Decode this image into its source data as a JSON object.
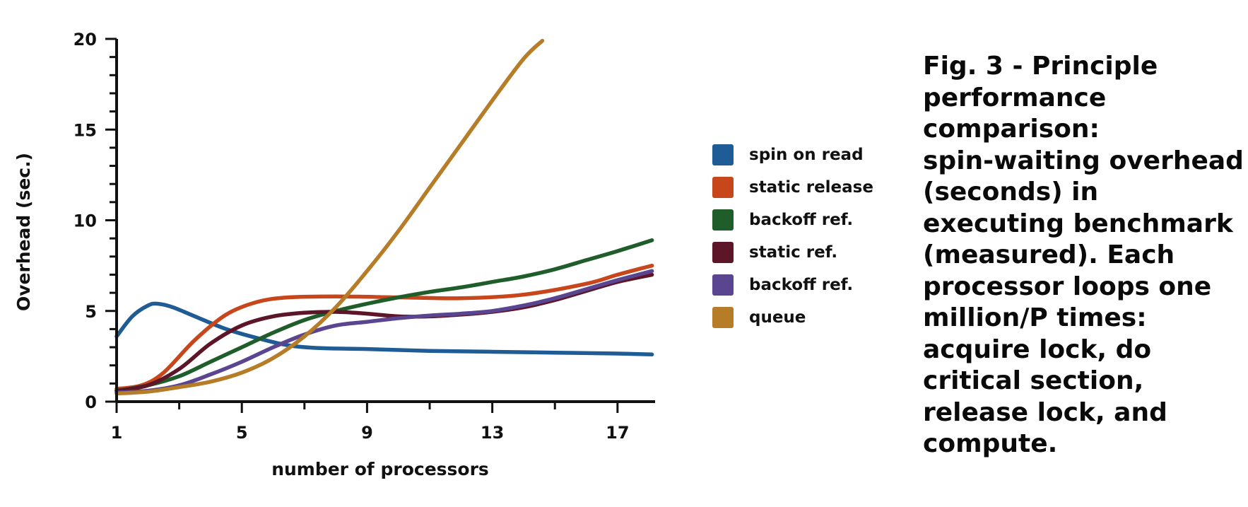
{
  "chart_data": {
    "type": "line",
    "title": "",
    "xlabel": "number of processors",
    "ylabel": "Overhead (sec.)",
    "xlim": [
      1,
      18.2
    ],
    "ylim": [
      0,
      20
    ],
    "x_ticks": [
      1,
      5,
      9,
      13,
      17
    ],
    "y_ticks": [
      0,
      5,
      10,
      15,
      20
    ],
    "legend_position": "right",
    "series": [
      {
        "name": "spin on read",
        "color": "#1f5b94",
        "points": [
          [
            1,
            3.6
          ],
          [
            1.5,
            4.7
          ],
          [
            2,
            5.3
          ],
          [
            2.3,
            5.4
          ],
          [
            2.8,
            5.2
          ],
          [
            3.5,
            4.7
          ],
          [
            4.5,
            4.0
          ],
          [
            5.5,
            3.5
          ],
          [
            6.5,
            3.1
          ],
          [
            7.5,
            2.95
          ],
          [
            9,
            2.9
          ],
          [
            11,
            2.8
          ],
          [
            13,
            2.75
          ],
          [
            15,
            2.7
          ],
          [
            17,
            2.65
          ],
          [
            18.1,
            2.6
          ]
        ]
      },
      {
        "name": "static release",
        "color": "#c8461c",
        "points": [
          [
            1,
            0.7
          ],
          [
            1.8,
            0.9
          ],
          [
            2.5,
            1.6
          ],
          [
            3.5,
            3.4
          ],
          [
            4.5,
            4.8
          ],
          [
            5.5,
            5.5
          ],
          [
            6.5,
            5.75
          ],
          [
            8,
            5.8
          ],
          [
            10,
            5.75
          ],
          [
            12,
            5.7
          ],
          [
            14,
            5.9
          ],
          [
            16,
            6.5
          ],
          [
            17,
            7.0
          ],
          [
            18.1,
            7.5
          ]
        ]
      },
      {
        "name": "backoff ref.",
        "color": "#1f5e2a",
        "points": [
          [
            1,
            0.6
          ],
          [
            2,
            0.9
          ],
          [
            3,
            1.4
          ],
          [
            4,
            2.2
          ],
          [
            5,
            3.0
          ],
          [
            6,
            3.8
          ],
          [
            7,
            4.5
          ],
          [
            8,
            5.0
          ],
          [
            9,
            5.4
          ],
          [
            10,
            5.75
          ],
          [
            11,
            6.05
          ],
          [
            12,
            6.3
          ],
          [
            13,
            6.6
          ],
          [
            14,
            6.9
          ],
          [
            15,
            7.3
          ],
          [
            16,
            7.8
          ],
          [
            17,
            8.3
          ],
          [
            18.1,
            8.9
          ]
        ]
      },
      {
        "name": "static ref.",
        "color": "#5c1628",
        "points": [
          [
            1,
            0.6
          ],
          [
            2,
            0.9
          ],
          [
            3,
            1.8
          ],
          [
            4,
            3.2
          ],
          [
            5,
            4.2
          ],
          [
            6,
            4.7
          ],
          [
            7,
            4.9
          ],
          [
            8,
            4.95
          ],
          [
            9,
            4.85
          ],
          [
            10,
            4.7
          ],
          [
            11,
            4.7
          ],
          [
            12,
            4.8
          ],
          [
            13,
            4.95
          ],
          [
            14,
            5.2
          ],
          [
            15,
            5.6
          ],
          [
            16,
            6.1
          ],
          [
            17,
            6.6
          ],
          [
            18.1,
            7.0
          ]
        ]
      },
      {
        "name": "backoff ref.",
        "color": "#5a4590",
        "points": [
          [
            1,
            0.5
          ],
          [
            2,
            0.6
          ],
          [
            3,
            0.9
          ],
          [
            4,
            1.5
          ],
          [
            5,
            2.2
          ],
          [
            6,
            3.0
          ],
          [
            7,
            3.7
          ],
          [
            8,
            4.2
          ],
          [
            9,
            4.4
          ],
          [
            10,
            4.6
          ],
          [
            11,
            4.75
          ],
          [
            12,
            4.85
          ],
          [
            13,
            5.0
          ],
          [
            14,
            5.3
          ],
          [
            15,
            5.7
          ],
          [
            16,
            6.2
          ],
          [
            17,
            6.7
          ],
          [
            18.1,
            7.2
          ]
        ]
      },
      {
        "name": "queue",
        "color": "#b77c28",
        "points": [
          [
            1,
            0.45
          ],
          [
            2,
            0.55
          ],
          [
            3,
            0.8
          ],
          [
            4,
            1.1
          ],
          [
            5,
            1.6
          ],
          [
            6,
            2.4
          ],
          [
            7,
            3.6
          ],
          [
            8,
            5.2
          ],
          [
            9,
            7.2
          ],
          [
            10,
            9.4
          ],
          [
            11,
            11.8
          ],
          [
            12,
            14.2
          ],
          [
            13,
            16.6
          ],
          [
            14,
            18.9
          ],
          [
            14.6,
            19.9
          ]
        ]
      }
    ]
  },
  "caption": {
    "lines": [
      "Fig. 3 - Principle",
      "performance",
      "comparison:",
      "spin-waiting overhead",
      "(seconds) in",
      "executing benchmark",
      "(measured). Each",
      "processor loops one",
      "million/P times:",
      "acquire lock, do",
      "critical section,",
      "release lock, and",
      "compute."
    ]
  }
}
